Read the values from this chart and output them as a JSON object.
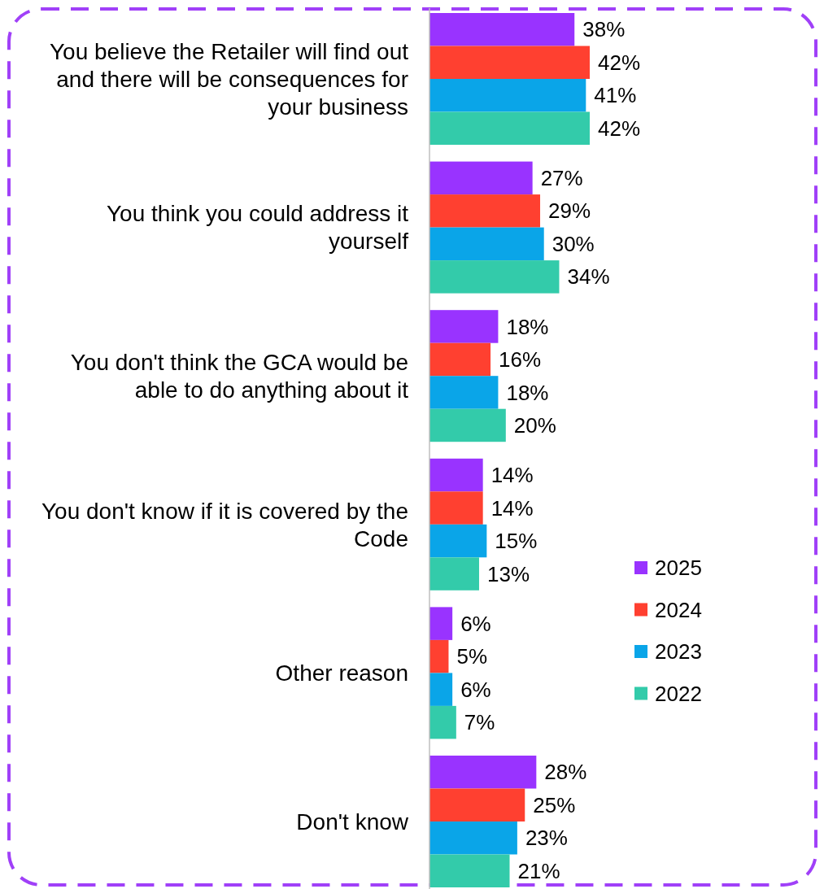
{
  "chart_data": {
    "type": "bar",
    "orientation": "horizontal",
    "categories": [
      "You believe the Retailer will find out and there will be consequences for your business",
      "You think you could address it yourself",
      "You don't think the GCA would be able to do anything about it",
      "You don't know if it is covered by the Code",
      "Other reason",
      "Don't know"
    ],
    "series": [
      {
        "name": "2025",
        "color": "#9933ff",
        "values": [
          38,
          27,
          18,
          14,
          6,
          28
        ],
        "value_labels": [
          "38%",
          "27%",
          "18%",
          "14%",
          "6%",
          "28%"
        ]
      },
      {
        "name": "2024",
        "color": "#ff4030",
        "values": [
          42,
          29,
          16,
          14,
          5,
          25
        ],
        "value_labels": [
          "42%",
          "29%",
          "16%",
          "14%",
          "5%",
          "25%"
        ]
      },
      {
        "name": "2023",
        "color": "#0aa5e8",
        "values": [
          41,
          30,
          18,
          15,
          6,
          23
        ],
        "value_labels": [
          "41%",
          "30%",
          "18%",
          "15%",
          "6%",
          "23%"
        ]
      },
      {
        "name": "2022",
        "color": "#33cbaa",
        "values": [
          42,
          34,
          20,
          13,
          7,
          21
        ],
        "value_labels": [
          "42%",
          "34%",
          "20%",
          "13%",
          "7%",
          "21%"
        ]
      }
    ],
    "legend": "right"
  }
}
